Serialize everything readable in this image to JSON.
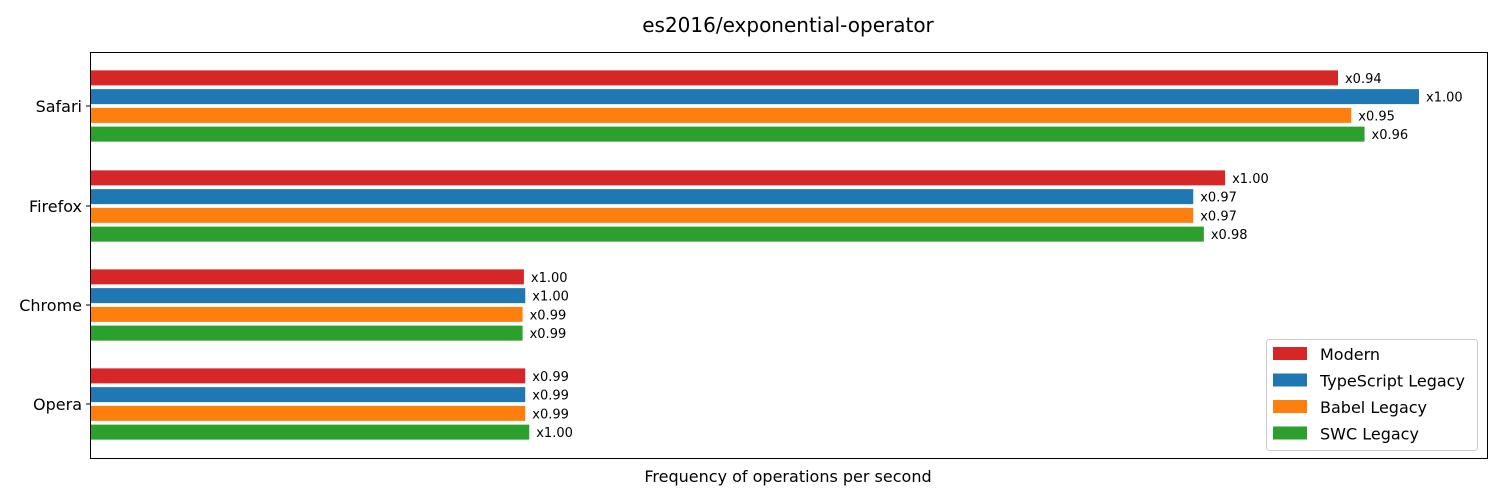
{
  "chart_data": {
    "type": "bar",
    "orientation": "horizontal",
    "title": "es2016/exponential-operator",
    "xlabel": "Frequency of operations per second",
    "ylabel": "",
    "x_ticks_visible": false,
    "grid": false,
    "legend_position": "lower-right",
    "xlim": [
      0,
      1
    ],
    "categories": [
      "Safari",
      "Firefox",
      "Chrome",
      "Opera"
    ],
    "series": [
      {
        "name": "Modern",
        "color": "#d62728",
        "values": [
          0.939,
          0.854,
          0.326,
          0.327
        ],
        "labels": [
          "x0.94",
          "x1.00",
          "x1.00",
          "x0.99"
        ]
      },
      {
        "name": "TypeScript Legacy",
        "color": "#1f77b4",
        "values": [
          1.0,
          0.83,
          0.327,
          0.327
        ],
        "labels": [
          "x1.00",
          "x0.97",
          "x1.00",
          "x0.99"
        ]
      },
      {
        "name": "Babel Legacy",
        "color": "#ff7f0e",
        "values": [
          0.949,
          0.83,
          0.325,
          0.327
        ],
        "labels": [
          "x0.95",
          "x0.97",
          "x0.99",
          "x0.99"
        ]
      },
      {
        "name": "SWC Legacy",
        "color": "#2ca02c",
        "values": [
          0.959,
          0.838,
          0.325,
          0.33
        ],
        "labels": [
          "x0.96",
          "x0.98",
          "x0.99",
          "x1.00"
        ]
      }
    ]
  }
}
